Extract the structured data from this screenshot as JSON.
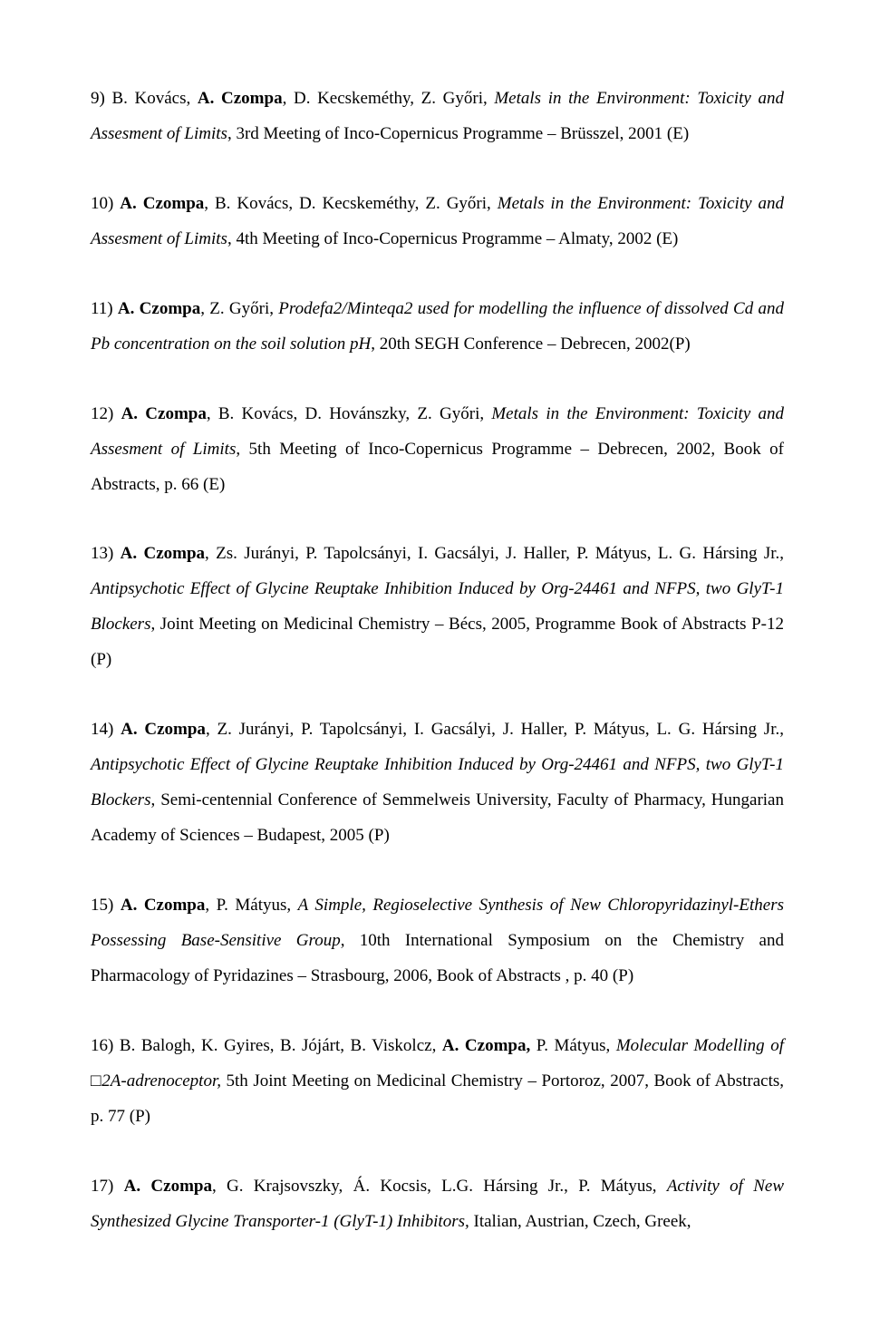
{
  "entries": {
    "e9": {
      "num": "9) ",
      "authors": "B. Kovács, ",
      "highlight": "A. Czompa",
      "authors2": ", D. Kecskeméthy, Z. Győri, ",
      "title": "Metals in the Environment: Toxicity and Assesment of Limits",
      "tail": ", 3rd Meeting of Inco-Copernicus Programme – Brüsszel, 2001 (E)"
    },
    "e10": {
      "num": "10) ",
      "highlight": "A. Czompa",
      "authors2": ", B. Kovács, D. Kecskeméthy, Z. Győri, ",
      "title": "Metals in the Environment: Toxicity and Assesment of Limits",
      "tail": ", 4th Meeting of Inco-Copernicus Programme – Almaty, 2002 (E)"
    },
    "e11": {
      "num": "11) ",
      "highlight": "A. Czompa",
      "authors2": ", Z. Győri, ",
      "title": "Prodefa2/Minteqa2 used for modelling the influence of dissolved Cd and Pb concentration on the soil solution pH",
      "tail": ", 20th SEGH Conference – Debrecen, 2002(P)"
    },
    "e12": {
      "num": "12) ",
      "highlight": "A. Czompa",
      "authors2": ", B. Kovács, D. Hovánszky, Z. Győri, ",
      "title": "Metals in the Environment: Toxicity and Assesment of Limits",
      "tail": ", 5th Meeting of Inco-Copernicus Programme – Debrecen, 2002, Book of Abstracts, p. 66 (E)"
    },
    "e13": {
      "num": "13) ",
      "highlight": "A. Czompa",
      "authors2": ", Zs. Jurányi, P. Tapolcsányi, I. Gacsályi, J. Haller, P. Mátyus, L. G. Hársing Jr., ",
      "title": "Antipsychotic Effect of Glycine Reuptake Inhibition Induced by Org-24461 and NFPS, two GlyT-1 Blockers",
      "tail": ", Joint Meeting on Medicinal Chemistry – Bécs, 2005, Programme Book of Abstracts P-12 (P)"
    },
    "e14": {
      "num": "14) ",
      "highlight": "A. Czompa",
      "authors2": ", Z. Jurányi, P. Tapolcsányi, I. Gacsályi, J. Haller, P. Mátyus, L. G. Hársing Jr., ",
      "title": "Antipsychotic Effect of Glycine Reuptake Inhibition Induced by Org-24461 and NFPS, two GlyT-1 Blockers",
      "tail": ", Semi-centennial Conference of Semmelweis University, Faculty of Pharmacy, Hungarian Academy of Sciences – Budapest, 2005 (P)"
    },
    "e15": {
      "num": "15) ",
      "highlight": "A. Czompa",
      "authors2": ", P. Mátyus, ",
      "title": "A Simple, Regioselective Synthesis of New Chloropyridazinyl-Ethers Possessing Base-Sensitive Group",
      "tail": ", 10th International Symposium on the Chemistry and Pharmacology of Pyridazines – Strasbourg, 2006, Book of Abstracts , p. 40 (P)"
    },
    "e16": {
      "num": "16) ",
      "authors_pre": "B. Balogh, K. Gyires, B. Jójárt, B. Viskolcz, ",
      "highlight": "A. Czompa,",
      "authors2": " P. Mátyus, ",
      "title": "Molecular Modelling of □2A-adrenoceptor, ",
      "tail": "5th Joint Meeting on Medicinal Chemistry – Portoroz, 2007, Book of Abstracts, p. 77 (P)"
    },
    "e17": {
      "num": "17) ",
      "highlight": "A. Czompa",
      "authors2": ", G. Krajsovszky, Á. Kocsis, L.G. Hársing Jr., P. Mátyus, ",
      "title": "Activity of New Synthesized Glycine Transporter-1 (GlyT-1) Inhibitors, ",
      "tail": "Italian, Austrian, Czech, Greek,"
    }
  }
}
